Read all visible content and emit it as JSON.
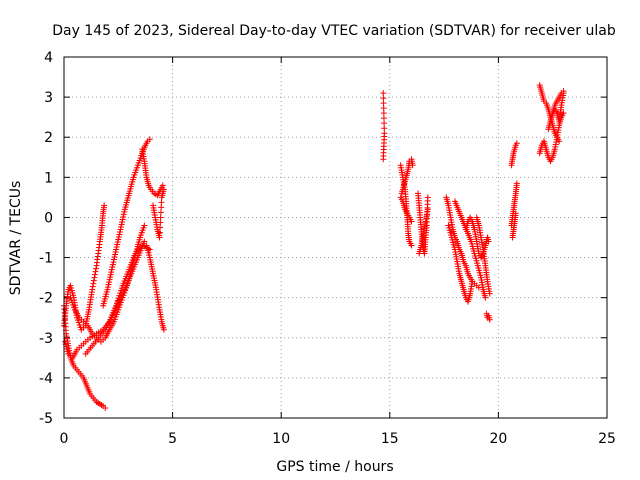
{
  "chart_data": {
    "type": "scatter",
    "title": "Day 145 of 2023, Sidereal Day-to-day VTEC variation (SDTVAR) for receiver ulab",
    "xlabel": "GPS time / hours",
    "ylabel": "SDTVAR / TECUs",
    "xlim": [
      0,
      25
    ],
    "ylim": [
      -5,
      4
    ],
    "xticks": [
      0,
      5,
      10,
      15,
      20,
      25
    ],
    "yticks": [
      -5,
      -4,
      -3,
      -2,
      -1,
      0,
      1,
      2,
      3,
      4
    ],
    "grid": true,
    "marker": "+",
    "series": [
      {
        "name": "SDTVAR",
        "color": "#ff0000",
        "tracks": [
          {
            "x": [
              0.0,
              0.1,
              0.2,
              0.3,
              0.45,
              0.6,
              0.75,
              0.9,
              1.05,
              1.2,
              1.35,
              1.5,
              1.65,
              1.8,
              1.9
            ],
            "y": [
              -2.2,
              -2.9,
              -3.2,
              -3.5,
              -3.7,
              -3.8,
              -3.9,
              -4.0,
              -4.2,
              -4.4,
              -4.5,
              -4.6,
              -4.65,
              -4.7,
              -4.75
            ]
          },
          {
            "x": [
              0.0,
              0.1,
              0.2,
              0.3,
              0.45,
              0.6,
              0.8,
              1.0,
              1.15,
              1.3,
              1.5,
              1.65,
              1.75,
              1.8,
              1.85
            ],
            "y": [
              -2.7,
              -2.2,
              -1.8,
              -1.7,
              -2.0,
              -2.5,
              -2.8,
              -2.7,
              -2.3,
              -1.8,
              -1.2,
              -0.6,
              -0.2,
              0.1,
              0.3
            ]
          },
          {
            "x": [
              0.05,
              0.2,
              0.4,
              0.6,
              0.8,
              1.0,
              1.2,
              1.5,
              1.8,
              2.1,
              2.4,
              2.7,
              3.0,
              3.2,
              3.4,
              3.6,
              3.8,
              3.95
            ],
            "y": [
              -3.1,
              -3.4,
              -3.5,
              -3.3,
              -3.2,
              -3.1,
              -3.0,
              -2.9,
              -2.8,
              -2.6,
              -2.2,
              -1.7,
              -1.3,
              -1.0,
              -0.8,
              -0.7,
              -0.75,
              -0.8
            ]
          },
          {
            "x": [
              1.8,
              2.0,
              2.2,
              2.4,
              2.6,
              2.8,
              3.0,
              3.2,
              3.4,
              3.6,
              3.75,
              3.85,
              3.95
            ],
            "y": [
              -2.2,
              -1.8,
              -1.3,
              -0.8,
              -0.3,
              0.2,
              0.6,
              1.0,
              1.3,
              1.6,
              1.8,
              1.9,
              1.95
            ]
          },
          {
            "x": [
              0.3,
              0.5,
              0.7,
              0.9,
              1.1,
              1.3,
              1.5,
              1.7,
              1.9,
              2.1,
              2.3,
              2.5,
              2.7,
              2.9,
              3.1,
              3.3,
              3.5,
              3.7
            ],
            "y": [
              -2.0,
              -2.3,
              -2.5,
              -2.6,
              -2.7,
              -2.9,
              -3.0,
              -3.1,
              -3.0,
              -2.8,
              -2.6,
              -2.3,
              -2.0,
              -1.7,
              -1.3,
              -0.9,
              -0.5,
              -0.2
            ]
          },
          {
            "x": [
              1.0,
              1.3,
              1.6,
              1.9,
              2.2,
              2.5,
              2.8,
              3.1,
              3.4,
              3.7
            ],
            "y": [
              -3.4,
              -3.2,
              -3.0,
              -2.8,
              -2.5,
              -2.1,
              -1.8,
              -1.4,
              -1.0,
              -0.6
            ]
          },
          {
            "x": [
              3.8,
              3.95,
              4.1,
              4.25,
              4.4,
              4.5,
              4.6
            ],
            "y": [
              -0.7,
              -1.0,
              -1.4,
              -1.8,
              -2.3,
              -2.6,
              -2.8
            ]
          },
          {
            "x": [
              3.6,
              3.7,
              3.8,
              3.9,
              4.0,
              4.15,
              4.3,
              4.45,
              4.55
            ],
            "y": [
              1.7,
              1.4,
              1.0,
              0.8,
              0.7,
              0.6,
              0.55,
              0.7,
              0.8
            ]
          },
          {
            "x": [
              4.1,
              4.2,
              4.3,
              4.4,
              4.5,
              4.6
            ],
            "y": [
              0.3,
              0.0,
              -0.3,
              -0.5,
              0.5,
              0.7
            ]
          },
          {
            "x": [
              14.7,
              14.75,
              14.7
            ],
            "y": [
              3.1,
              2.1,
              1.45
            ]
          },
          {
            "x": [
              15.5,
              15.6,
              15.7,
              15.75,
              15.8,
              15.85,
              15.9,
              15.95,
              16.0
            ],
            "y": [
              1.3,
              1.0,
              0.7,
              0.4,
              0.0,
              -0.4,
              -0.6,
              -0.65,
              -0.7
            ]
          },
          {
            "x": [
              15.55,
              15.65,
              15.75,
              15.85,
              15.9,
              16.0,
              16.05
            ],
            "y": [
              0.6,
              0.8,
              1.0,
              1.2,
              1.4,
              1.45,
              1.3
            ]
          },
          {
            "x": [
              15.5,
              15.6,
              15.7,
              15.8,
              15.9,
              16.0
            ],
            "y": [
              0.5,
              0.4,
              0.2,
              0.1,
              0.0,
              -0.1
            ]
          },
          {
            "x": [
              16.3,
              16.35,
              16.4,
              16.45,
              16.5,
              16.55,
              16.6,
              16.65,
              16.7,
              16.75
            ],
            "y": [
              0.6,
              0.3,
              0.0,
              -0.3,
              -0.6,
              -0.8,
              -0.9,
              -0.5,
              -0.2,
              0.5
            ]
          },
          {
            "x": [
              16.35,
              16.45,
              16.55,
              16.65,
              16.75
            ],
            "y": [
              -0.9,
              -0.7,
              -0.4,
              -0.1,
              0.2
            ]
          },
          {
            "x": [
              17.6,
              17.7,
              17.8,
              17.9,
              18.0,
              18.1,
              18.2,
              18.3,
              18.4,
              18.5,
              18.6,
              18.7,
              18.8,
              18.9,
              19.0,
              19.1
            ],
            "y": [
              0.5,
              0.3,
              0.0,
              -0.3,
              -0.5,
              -0.6,
              -0.8,
              -0.9,
              -1.1,
              -1.2,
              -1.4,
              -1.5,
              -1.6,
              -1.65,
              -1.7,
              -1.75
            ]
          },
          {
            "x": [
              17.7,
              17.85,
              18.0,
              18.1,
              18.2,
              18.3,
              18.4,
              18.5,
              18.6,
              18.7,
              18.8
            ],
            "y": [
              -0.2,
              -0.5,
              -0.8,
              -1.1,
              -1.4,
              -1.6,
              -1.8,
              -2.0,
              -2.1,
              -1.9,
              -1.6
            ]
          },
          {
            "x": [
              18.0,
              18.15,
              18.3,
              18.45,
              18.6,
              18.75,
              18.9,
              19.05,
              19.2,
              19.3,
              19.4
            ],
            "y": [
              0.4,
              0.2,
              0.0,
              -0.2,
              -0.4,
              -0.6,
              -0.9,
              -1.2,
              -1.5,
              -1.8,
              -2.0
            ]
          },
          {
            "x": [
              18.5,
              18.6,
              18.7,
              18.8,
              18.9,
              19.0,
              19.1,
              19.2,
              19.3,
              19.4,
              19.5,
              19.55
            ],
            "y": [
              -0.3,
              -0.1,
              0.0,
              -0.1,
              -0.3,
              -0.6,
              -0.9,
              -1.0,
              -0.9,
              -0.7,
              -0.5,
              -0.6
            ]
          },
          {
            "x": [
              19.0,
              19.1,
              19.2,
              19.3,
              19.4,
              19.5,
              19.6
            ],
            "y": [
              0.0,
              -0.2,
              -0.5,
              -0.8,
              -1.2,
              -1.6,
              -1.9
            ]
          },
          {
            "x": [
              19.45,
              19.5,
              19.55,
              19.6
            ],
            "y": [
              -2.4,
              -2.5,
              -2.45,
              -2.55
            ]
          },
          {
            "x": [
              20.6,
              20.65,
              20.7,
              20.75,
              20.8,
              20.85
            ],
            "y": [
              -0.2,
              0.0,
              0.2,
              0.4,
              0.6,
              0.85
            ]
          },
          {
            "x": [
              20.6,
              20.65,
              20.7,
              20.75,
              20.8,
              20.85
            ],
            "y": [
              1.3,
              1.45,
              1.6,
              1.7,
              1.8,
              1.85
            ]
          },
          {
            "x": [
              20.65,
              20.7,
              20.75,
              20.8
            ],
            "y": [
              -0.5,
              -0.3,
              -0.1,
              0.1
            ]
          },
          {
            "x": [
              21.9,
              22.0,
              22.1,
              22.2,
              22.3,
              22.4,
              22.5,
              22.6,
              22.7,
              22.8,
              22.9,
              23.0
            ],
            "y": [
              1.6,
              1.8,
              1.9,
              1.7,
              1.5,
              1.4,
              1.5,
              1.7,
              2.0,
              2.3,
              2.5,
              2.6
            ]
          },
          {
            "x": [
              21.9,
              22.0,
              22.1,
              22.2,
              22.3,
              22.4,
              22.5,
              22.6,
              22.7,
              22.8
            ],
            "y": [
              3.3,
              3.1,
              2.9,
              2.85,
              2.7,
              2.5,
              2.3,
              2.1,
              2.0,
              1.9
            ]
          },
          {
            "x": [
              22.3,
              22.4,
              22.5,
              22.6,
              22.7,
              22.8,
              22.9,
              23.0
            ],
            "y": [
              2.2,
              2.4,
              2.6,
              2.7,
              2.6,
              2.4,
              2.8,
              3.1
            ]
          },
          {
            "x": [
              22.4,
              22.5,
              22.6,
              22.7,
              22.8,
              22.9,
              23.0
            ],
            "y": [
              2.4,
              2.6,
              2.8,
              2.9,
              3.0,
              3.1,
              3.15
            ]
          }
        ]
      }
    ]
  }
}
